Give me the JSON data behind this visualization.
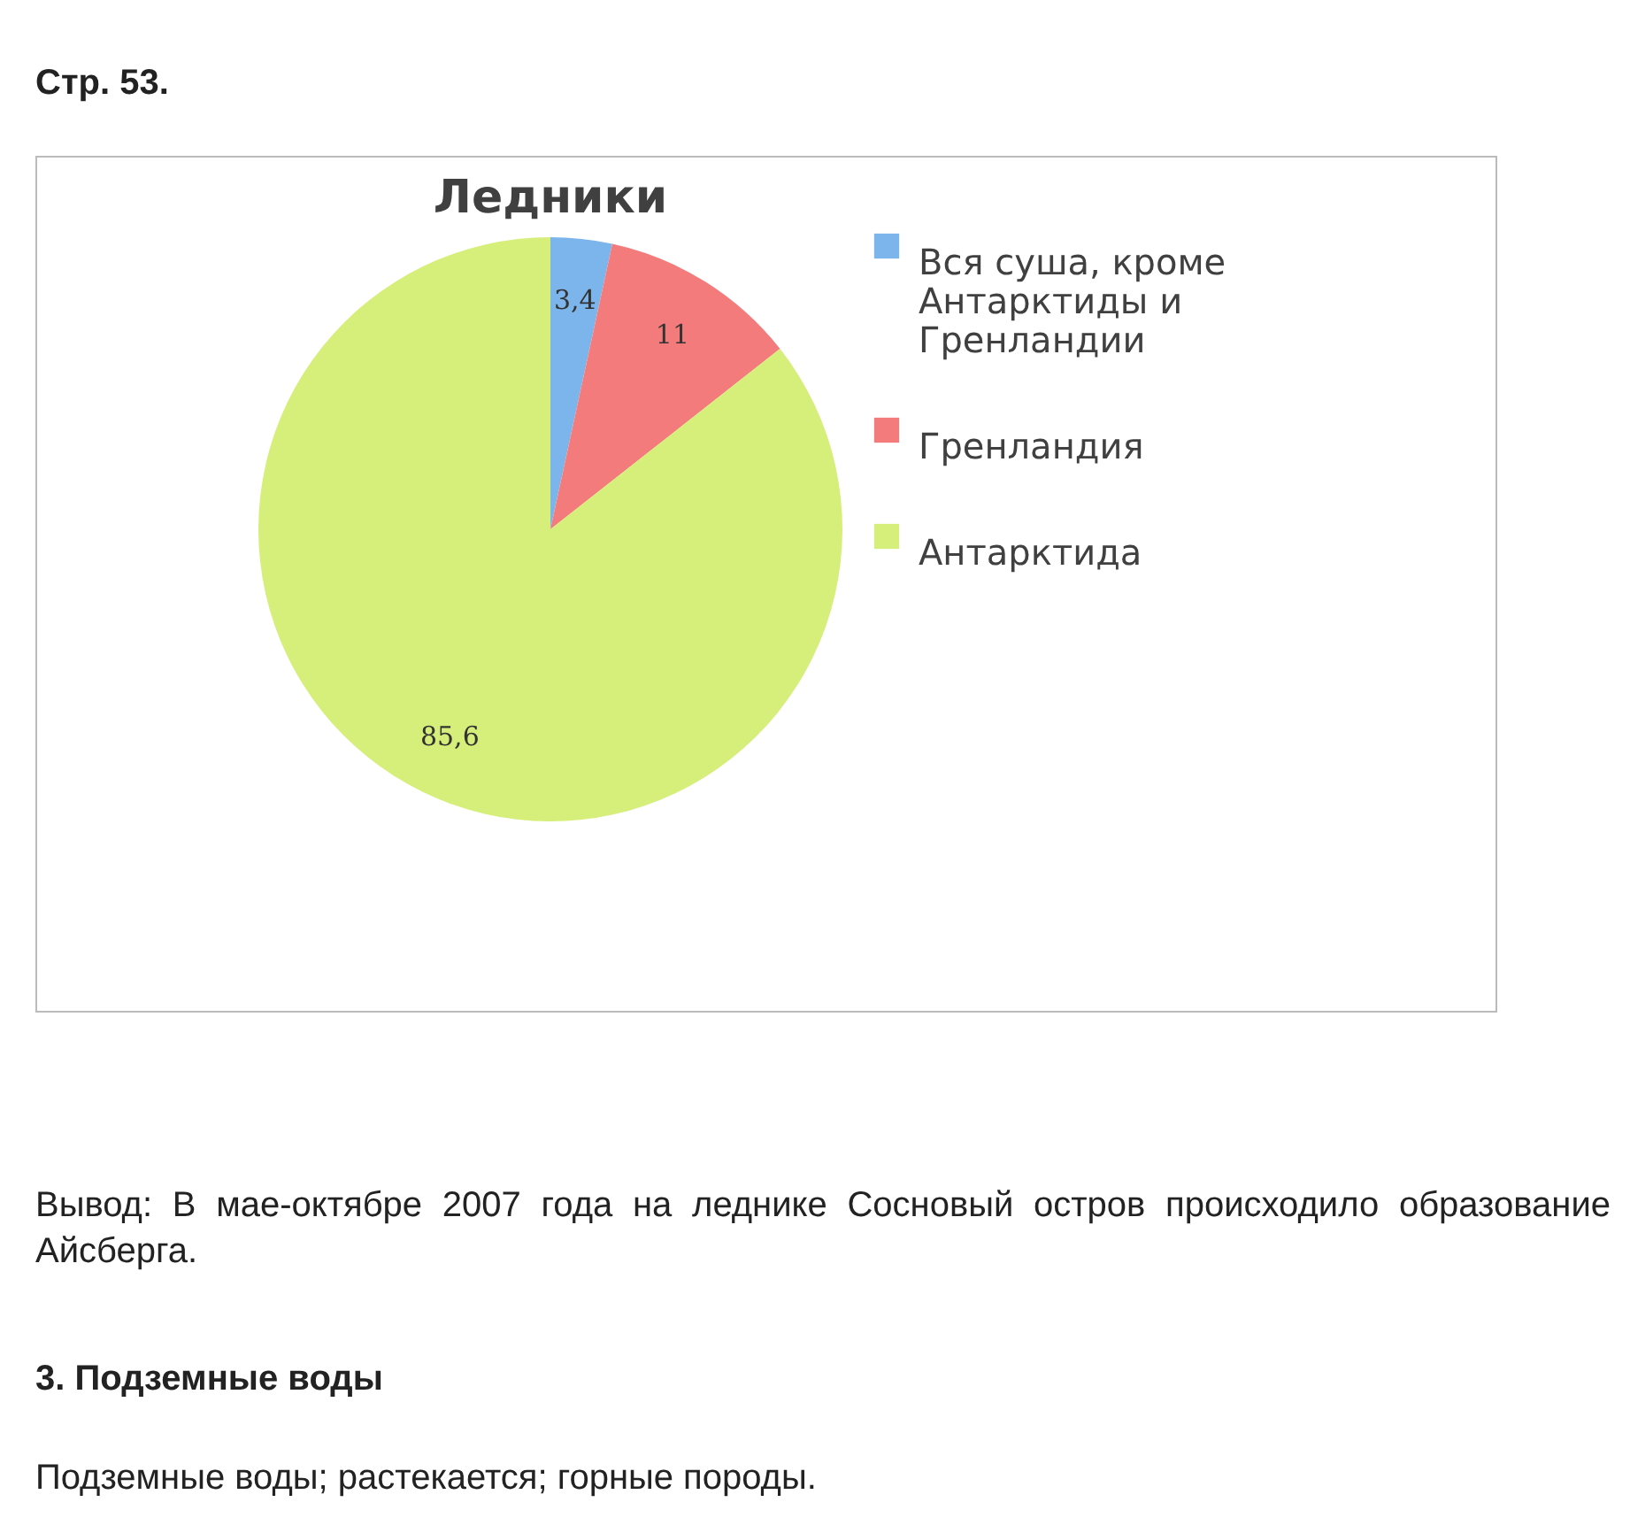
{
  "chart_data": {
    "type": "pie",
    "title": "Ледники",
    "categories": [
      "Вся суша, кроме Антарктиды и Гренландии",
      "Гренландия",
      "Антарктида"
    ],
    "values": [
      3.4,
      11,
      85.6
    ],
    "value_labels": [
      "3,4",
      "11",
      "85,6"
    ],
    "colors": [
      "#7cb5ec",
      "#f47b7b",
      "#d6ee7a"
    ],
    "legend": "right",
    "annotations": [
      "Стр. 53.",
      "Вывод: В мае-октябре 2007 года на леднике Сосновый остров происходило образование Айсберга.",
      "3. Подземные воды",
      "Подземные воды; растекается; горные породы."
    ]
  }
}
